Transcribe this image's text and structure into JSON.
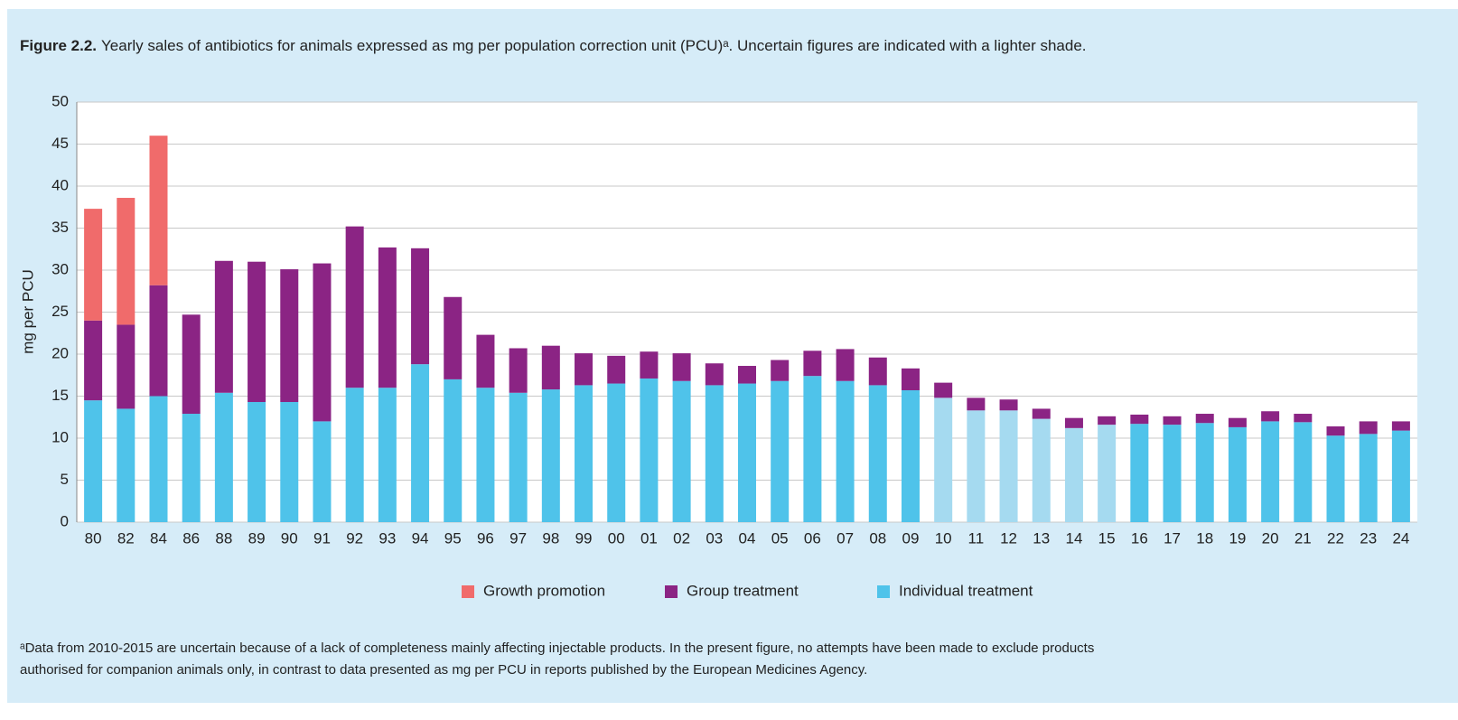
{
  "chart_data": {
    "type": "stacked_bar",
    "title_label": "Figure 2.2.",
    "title": "Yearly sales of antibiotics for animals expressed as mg per population correction unit (PCU)ᵃ. Uncertain figures are indicated with a lighter shade.",
    "y_label": "mg per PCU",
    "categories": [
      "80",
      "82",
      "84",
      "86",
      "88",
      "89",
      "90",
      "91",
      "92",
      "93",
      "94",
      "95",
      "96",
      "97",
      "98",
      "99",
      "00",
      "01",
      "02",
      "03",
      "04",
      "05",
      "06",
      "07",
      "08",
      "09",
      "10",
      "11",
      "12",
      "13",
      "14",
      "15",
      "16",
      "17",
      "18",
      "19",
      "20",
      "21",
      "22",
      "23",
      "24"
    ],
    "series": [
      {
        "name": "Growth promotion",
        "color": "#f06b6b",
        "values": [
          13.3,
          15.1,
          17.8,
          null,
          null,
          null,
          null,
          null,
          null,
          null,
          null,
          null,
          null,
          null,
          null,
          null,
          null,
          null,
          null,
          null,
          null,
          null,
          null,
          null,
          null,
          null,
          null,
          null,
          null,
          null,
          null,
          null,
          null,
          null,
          null,
          null,
          null,
          null,
          null,
          null,
          null
        ]
      },
      {
        "name": "Group treatment",
        "color": "#8b2484",
        "values": [
          9.5,
          10,
          13.2,
          11.8,
          15.7,
          16.7,
          15.8,
          18.8,
          19.2,
          16.7,
          13.8,
          9.8,
          6.3,
          5.3,
          5.2,
          3.8,
          3.3,
          3.2,
          3.3,
          2.6,
          2.1,
          2.5,
          3.0,
          3.8,
          3.3,
          2.6,
          1.8,
          1.5,
          1.3,
          1.2,
          1.2,
          1.0,
          1.1,
          1.0,
          1.1,
          1.1,
          1.2,
          1.0,
          1.1,
          1.5,
          1.1
        ]
      },
      {
        "name": "Individual treatment",
        "color": "#4fc3ea",
        "colors": [
          "#4fc3ea",
          "#4fc3ea",
          "#4fc3ea",
          "#4fc3ea",
          "#4fc3ea",
          "#4fc3ea",
          "#4fc3ea",
          "#4fc3ea",
          "#4fc3ea",
          "#4fc3ea",
          "#4fc3ea",
          "#4fc3ea",
          "#4fc3ea",
          "#4fc3ea",
          "#4fc3ea",
          "#4fc3ea",
          "#4fc3ea",
          "#4fc3ea",
          "#4fc3ea",
          "#4fc3ea",
          "#4fc3ea",
          "#4fc3ea",
          "#4fc3ea",
          "#4fc3ea",
          "#4fc3ea",
          "#4fc3ea",
          "#a5daf0",
          "#a5daf0",
          "#a5daf0",
          "#a5daf0",
          "#a5daf0",
          "#a5daf0",
          "#4fc3ea",
          "#4fc3ea",
          "#4fc3ea",
          "#4fc3ea",
          "#4fc3ea",
          "#4fc3ea",
          "#4fc3ea",
          "#4fc3ea",
          "#4fc3ea"
        ],
        "values": [
          14.5,
          13.5,
          15,
          12.9,
          15.4,
          14.3,
          14.3,
          12,
          16,
          16,
          18.8,
          17,
          16,
          15.4,
          15.8,
          16.3,
          16.5,
          17.1,
          16.8,
          16.3,
          16.5,
          16.8,
          17.4,
          16.8,
          16.3,
          15.7,
          14.8,
          13.3,
          13.3,
          12.3,
          11.2,
          11.6,
          11.7,
          11.6,
          11.8,
          11.3,
          12.0,
          11.9,
          10.3,
          10.5,
          10.9
        ]
      }
    ],
    "ylim": [
      0,
      50
    ],
    "yticks": [
      0,
      5,
      10,
      15,
      20,
      25,
      30,
      35,
      40,
      45,
      50
    ],
    "grid": true,
    "legend": "bottom",
    "footnote": [
      "ᵃData from 2010-2015 are uncertain because of a lack of completeness mainly affecting injectable products. In the present figure, no attempts have been made to exclude products",
      "authorised for companion animals only, in contrast to data presented as mg per PCU in reports published by the European Medicines Agency."
    ]
  }
}
